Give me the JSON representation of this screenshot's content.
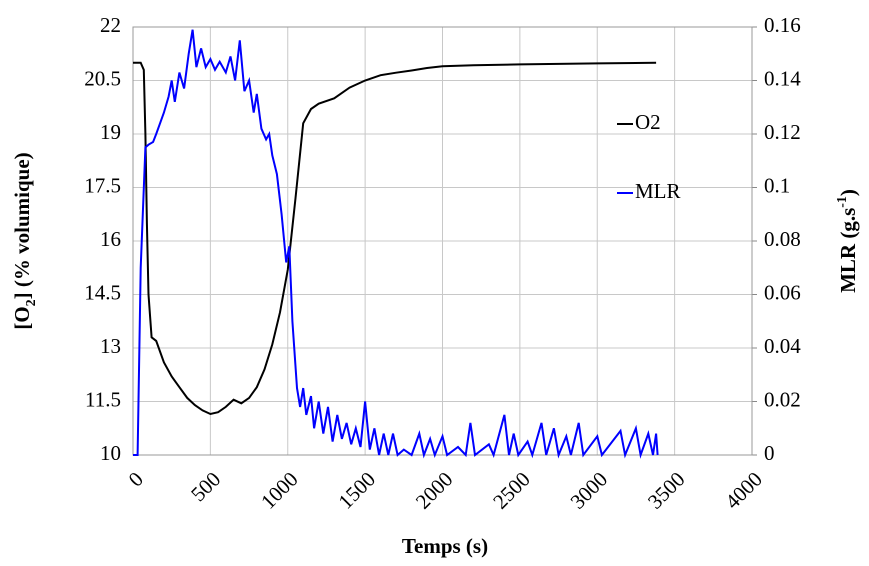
{
  "chart_data": {
    "type": "line",
    "x_label": "Temps (s)",
    "y_label": [
      "[O",
      "2",
      "] (% volumique)"
    ],
    "y2_label": [
      "MLR (g.s",
      "-1",
      ")"
    ],
    "xlim": [
      0,
      4000
    ],
    "xticks": [
      0,
      500,
      1000,
      1500,
      2000,
      2500,
      3000,
      3500,
      4000
    ],
    "ylim": [
      10,
      22
    ],
    "yticks": [
      10,
      11.5,
      13,
      14.5,
      16,
      17.5,
      19,
      20.5,
      22
    ],
    "y2lim": [
      0,
      0.16
    ],
    "y2ticks": [
      0,
      0.02,
      0.04,
      0.06,
      0.08,
      0.1,
      0.12,
      0.14,
      0.16
    ],
    "grid": true,
    "series": [
      {
        "name": "O2",
        "color": "#000000",
        "x": [
          0,
          50,
          70,
          80,
          90,
          100,
          120,
          150,
          200,
          250,
          300,
          350,
          400,
          450,
          500,
          550,
          600,
          650,
          700,
          750,
          800,
          850,
          900,
          950,
          1000,
          1050,
          1100,
          1150,
          1200,
          1300,
          1400,
          1500,
          1600,
          1700,
          1800,
          1900,
          2000,
          2200,
          2500,
          3000,
          3380
        ],
        "values": [
          21,
          21,
          20.8,
          19,
          16.5,
          14.5,
          13.3,
          13.2,
          12.6,
          12.2,
          11.9,
          11.6,
          11.4,
          11.25,
          11.15,
          11.2,
          11.35,
          11.55,
          11.45,
          11.6,
          11.9,
          12.4,
          13.1,
          14,
          15.2,
          17.2,
          19.3,
          19.7,
          19.85,
          20,
          20.3,
          20.5,
          20.65,
          20.72,
          20.78,
          20.85,
          20.9,
          20.93,
          20.95,
          20.98,
          21
        ]
      },
      {
        "name": "MLR",
        "color": "#0000ff",
        "axis": "y2",
        "x": [
          0,
          30,
          50,
          80,
          100,
          130,
          150,
          200,
          230,
          250,
          270,
          300,
          330,
          360,
          385,
          410,
          440,
          470,
          500,
          530,
          560,
          600,
          630,
          660,
          690,
          720,
          750,
          780,
          800,
          830,
          860,
          880,
          900,
          930,
          960,
          990,
          1010,
          1030,
          1060,
          1080,
          1100,
          1120,
          1150,
          1170,
          1200,
          1230,
          1260,
          1290,
          1320,
          1350,
          1380,
          1410,
          1440,
          1470,
          1500,
          1530,
          1560,
          1590,
          1620,
          1650,
          1680,
          1710,
          1750,
          1800,
          1850,
          1880,
          1920,
          1950,
          2000,
          2030,
          2100,
          2150,
          2180,
          2210,
          2300,
          2330,
          2400,
          2430,
          2460,
          2490,
          2550,
          2580,
          2640,
          2670,
          2720,
          2750,
          2800,
          2830,
          2880,
          2910,
          3000,
          3030,
          3150,
          3180,
          3250,
          3280,
          3330,
          3360,
          3380,
          3390
        ],
        "values": [
          0,
          0,
          0.07,
          0.115,
          0.116,
          0.117,
          0.12,
          0.128,
          0.134,
          0.14,
          0.132,
          0.143,
          0.137,
          0.15,
          0.159,
          0.145,
          0.152,
          0.145,
          0.148,
          0.144,
          0.147,
          0.143,
          0.149,
          0.14,
          0.155,
          0.136,
          0.14,
          0.128,
          0.135,
          0.122,
          0.118,
          0.12,
          0.112,
          0.105,
          0.09,
          0.072,
          0.078,
          0.05,
          0.025,
          0.018,
          0.025,
          0.015,
          0.022,
          0.01,
          0.02,
          0.008,
          0.018,
          0.005,
          0.015,
          0.006,
          0.012,
          0.004,
          0.01,
          0.003,
          0.02,
          0.002,
          0.01,
          0,
          0.008,
          0,
          0.008,
          0,
          0.002,
          0,
          0.008,
          0,
          0.006,
          0,
          0.007,
          0,
          0.003,
          0,
          0.012,
          0,
          0.004,
          0,
          0.015,
          0,
          0.008,
          0,
          0.005,
          0,
          0.012,
          0,
          0.01,
          0,
          0.007,
          0,
          0.012,
          0,
          0.007,
          0,
          0.009,
          0,
          0.01,
          0,
          0.008,
          0,
          0.008,
          0
        ]
      }
    ]
  }
}
